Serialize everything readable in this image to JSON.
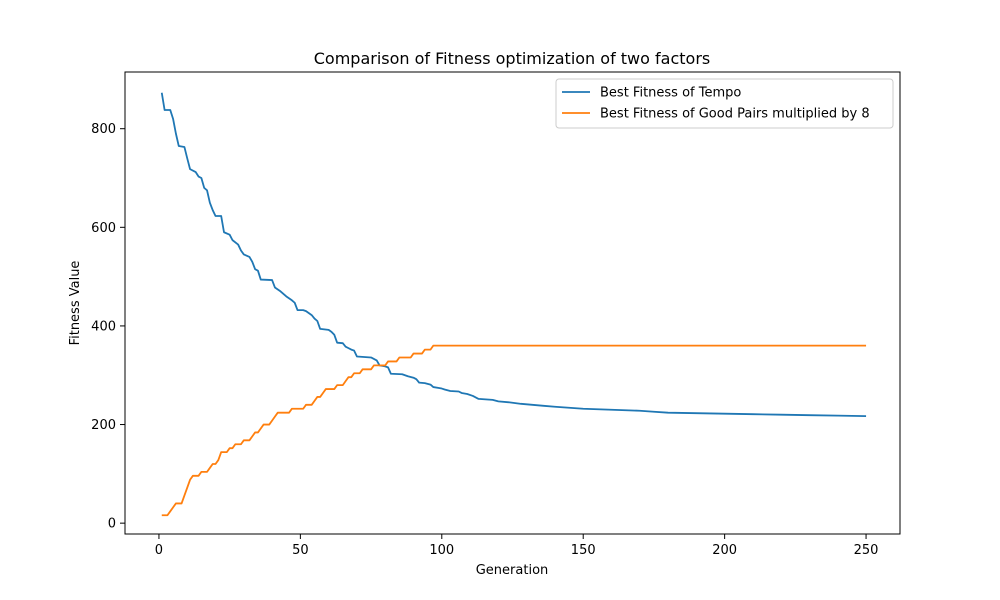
{
  "chart_data": {
    "type": "line",
    "title": "Comparison of Fitness optimization of two factors",
    "xlabel": "Generation",
    "ylabel": "Fitness Value",
    "xlim": [
      -12,
      262
    ],
    "ylim": [
      -22,
      915
    ],
    "xticks": [
      0,
      50,
      100,
      150,
      200,
      250
    ],
    "yticks": [
      0,
      200,
      400,
      600,
      800
    ],
    "grid": false,
    "legend_position": "top-right",
    "series": [
      {
        "name": "Best Fitness of Tempo",
        "color": "#1f77b4",
        "points": [
          [
            1,
            873
          ],
          [
            2,
            838
          ],
          [
            4,
            838
          ],
          [
            5,
            820
          ],
          [
            6,
            790
          ],
          [
            7,
            765
          ],
          [
            9,
            763
          ],
          [
            10,
            740
          ],
          [
            11,
            718
          ],
          [
            13,
            712
          ],
          [
            14,
            703
          ],
          [
            15,
            700
          ],
          [
            16,
            680
          ],
          [
            17,
            675
          ],
          [
            18,
            650
          ],
          [
            19,
            635
          ],
          [
            20,
            623
          ],
          [
            22,
            623
          ],
          [
            23,
            590
          ],
          [
            25,
            585
          ],
          [
            26,
            574
          ],
          [
            28,
            565
          ],
          [
            29,
            553
          ],
          [
            30,
            545
          ],
          [
            32,
            540
          ],
          [
            33,
            530
          ],
          [
            34,
            515
          ],
          [
            35,
            512
          ],
          [
            36,
            494
          ],
          [
            40,
            493
          ],
          [
            41,
            478
          ],
          [
            43,
            470
          ],
          [
            45,
            460
          ],
          [
            47,
            452
          ],
          [
            48,
            447
          ],
          [
            49,
            432
          ],
          [
            51,
            432
          ],
          [
            52,
            430
          ],
          [
            54,
            422
          ],
          [
            55,
            415
          ],
          [
            56,
            410
          ],
          [
            57,
            394
          ],
          [
            60,
            392
          ],
          [
            61,
            388
          ],
          [
            62,
            382
          ],
          [
            63,
            366
          ],
          [
            65,
            365
          ],
          [
            66,
            358
          ],
          [
            67,
            355
          ],
          [
            68,
            352
          ],
          [
            69,
            350
          ],
          [
            70,
            338
          ],
          [
            75,
            336
          ],
          [
            77,
            330
          ],
          [
            78,
            320
          ],
          [
            80,
            318
          ],
          [
            81,
            316
          ],
          [
            82,
            303
          ],
          [
            86,
            302
          ],
          [
            88,
            298
          ],
          [
            90,
            295
          ],
          [
            91,
            292
          ],
          [
            92,
            285
          ],
          [
            94,
            284
          ],
          [
            96,
            281
          ],
          [
            97,
            276
          ],
          [
            99,
            274
          ],
          [
            100,
            273
          ],
          [
            101,
            271
          ],
          [
            103,
            268
          ],
          [
            106,
            267
          ],
          [
            107,
            264
          ],
          [
            109,
            262
          ],
          [
            111,
            258
          ],
          [
            113,
            252
          ],
          [
            118,
            250
          ],
          [
            120,
            247
          ],
          [
            124,
            245
          ],
          [
            128,
            242
          ],
          [
            132,
            240
          ],
          [
            136,
            238
          ],
          [
            140,
            236
          ],
          [
            145,
            234
          ],
          [
            150,
            232
          ],
          [
            155,
            231
          ],
          [
            160,
            230
          ],
          [
            165,
            229
          ],
          [
            170,
            228
          ],
          [
            175,
            226
          ],
          [
            180,
            224
          ],
          [
            190,
            223
          ],
          [
            200,
            222
          ],
          [
            210,
            221
          ],
          [
            220,
            220
          ],
          [
            230,
            219
          ],
          [
            240,
            218
          ],
          [
            250,
            217
          ]
        ]
      },
      {
        "name": "Best Fitness of Good Pairs multiplied by 8",
        "color": "#ff7f0e",
        "points": [
          [
            1,
            16
          ],
          [
            2,
            16
          ],
          [
            3,
            16
          ],
          [
            4,
            24
          ],
          [
            5,
            32
          ],
          [
            6,
            40
          ],
          [
            7,
            40
          ],
          [
            8,
            40
          ],
          [
            9,
            56
          ],
          [
            10,
            72
          ],
          [
            11,
            88
          ],
          [
            12,
            96
          ],
          [
            13,
            96
          ],
          [
            14,
            96
          ],
          [
            15,
            104
          ],
          [
            16,
            104
          ],
          [
            17,
            104
          ],
          [
            18,
            112
          ],
          [
            19,
            120
          ],
          [
            20,
            120
          ],
          [
            21,
            128
          ],
          [
            22,
            144
          ],
          [
            23,
            144
          ],
          [
            24,
            144
          ],
          [
            25,
            152
          ],
          [
            26,
            152
          ],
          [
            27,
            160
          ],
          [
            28,
            160
          ],
          [
            29,
            160
          ],
          [
            30,
            168
          ],
          [
            31,
            168
          ],
          [
            32,
            168
          ],
          [
            33,
            176
          ],
          [
            34,
            184
          ],
          [
            35,
            184
          ],
          [
            36,
            192
          ],
          [
            37,
            200
          ],
          [
            38,
            200
          ],
          [
            39,
            200
          ],
          [
            40,
            208
          ],
          [
            41,
            216
          ],
          [
            42,
            224
          ],
          [
            43,
            224
          ],
          [
            44,
            224
          ],
          [
            45,
            224
          ],
          [
            46,
            224
          ],
          [
            47,
            232
          ],
          [
            48,
            232
          ],
          [
            49,
            232
          ],
          [
            50,
            232
          ],
          [
            51,
            232
          ],
          [
            52,
            240
          ],
          [
            53,
            240
          ],
          [
            54,
            240
          ],
          [
            55,
            248
          ],
          [
            56,
            256
          ],
          [
            57,
            256
          ],
          [
            58,
            264
          ],
          [
            59,
            272
          ],
          [
            60,
            272
          ],
          [
            61,
            272
          ],
          [
            62,
            272
          ],
          [
            63,
            280
          ],
          [
            64,
            280
          ],
          [
            65,
            280
          ],
          [
            66,
            288
          ],
          [
            67,
            296
          ],
          [
            68,
            296
          ],
          [
            69,
            304
          ],
          [
            70,
            304
          ],
          [
            71,
            304
          ],
          [
            72,
            312
          ],
          [
            73,
            312
          ],
          [
            74,
            312
          ],
          [
            75,
            312
          ],
          [
            76,
            320
          ],
          [
            77,
            320
          ],
          [
            78,
            320
          ],
          [
            79,
            320
          ],
          [
            80,
            320
          ],
          [
            81,
            328
          ],
          [
            82,
            328
          ],
          [
            83,
            328
          ],
          [
            84,
            328
          ],
          [
            85,
            336
          ],
          [
            86,
            336
          ],
          [
            87,
            336
          ],
          [
            88,
            336
          ],
          [
            89,
            336
          ],
          [
            90,
            344
          ],
          [
            91,
            344
          ],
          [
            92,
            344
          ],
          [
            93,
            344
          ],
          [
            94,
            352
          ],
          [
            95,
            352
          ],
          [
            96,
            352
          ],
          [
            97,
            360
          ],
          [
            98,
            360
          ],
          [
            99,
            360
          ],
          [
            100,
            360
          ],
          [
            250,
            360
          ]
        ]
      }
    ]
  }
}
